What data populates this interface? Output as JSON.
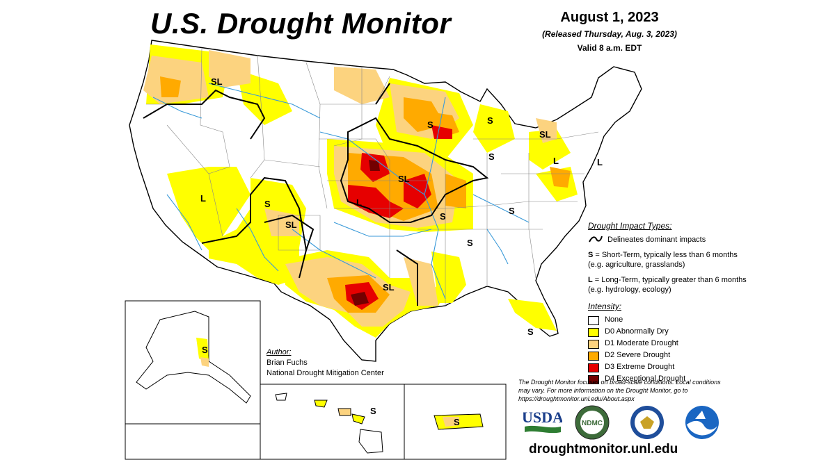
{
  "header": {
    "title": "U.S. Drought Monitor",
    "date": "August 1, 2023",
    "released": "(Released Thursday, Aug. 3, 2023)",
    "valid": "Valid 8 a.m. EDT"
  },
  "legend": {
    "impact_heading": "Drought Impact Types:",
    "impact_line_label": "Delineates dominant impacts",
    "short_term_code": "S",
    "short_term_text": "= Short-Term, typically less than 6 months (e.g. agriculture, grasslands)",
    "long_term_code": "L",
    "long_term_text": "= Long-Term, typically greater than 6 months (e.g. hydrology, ecology)",
    "intensity_heading": "Intensity:",
    "intensity": [
      {
        "label": "None",
        "color": "#ffffff"
      },
      {
        "label": "D0 Abnormally Dry",
        "color": "#ffff00"
      },
      {
        "label": "D1 Moderate Drought",
        "color": "#fcd37f"
      },
      {
        "label": "D2 Severe Drought",
        "color": "#ffaa00"
      },
      {
        "label": "D3 Extreme Drought",
        "color": "#e60000"
      },
      {
        "label": "D4 Exceptional Drought",
        "color": "#730000"
      }
    ]
  },
  "author": {
    "heading": "Author:",
    "name": "Brian Fuchs",
    "org": "National Drought Mitigation Center"
  },
  "note": "The Drought Monitor focuses on broad-scale conditions. Local conditions may vary. For more information on the Drought Monitor, go to https://droughtmonitor.unl.edu/About.aspx",
  "website": "droughtmonitor.unl.edu",
  "logos": {
    "usda": "USDA",
    "ndmc": "NDMC",
    "ndmc_ring": "UNIVERSITY OF NEBRASKA",
    "noaa": "NOAA",
    "commerce_icon": "eagle-seal-icon"
  },
  "map_labels": {
    "conus": [
      "SL",
      "S",
      "S",
      "S",
      "SL",
      "SL",
      "L",
      "S",
      "L",
      "L",
      "SL",
      "L",
      "S",
      "SL",
      "S",
      "S",
      "S",
      "SL",
      "SL"
    ],
    "alaska": "S",
    "hawaii": "S",
    "puerto_rico": "S"
  }
}
